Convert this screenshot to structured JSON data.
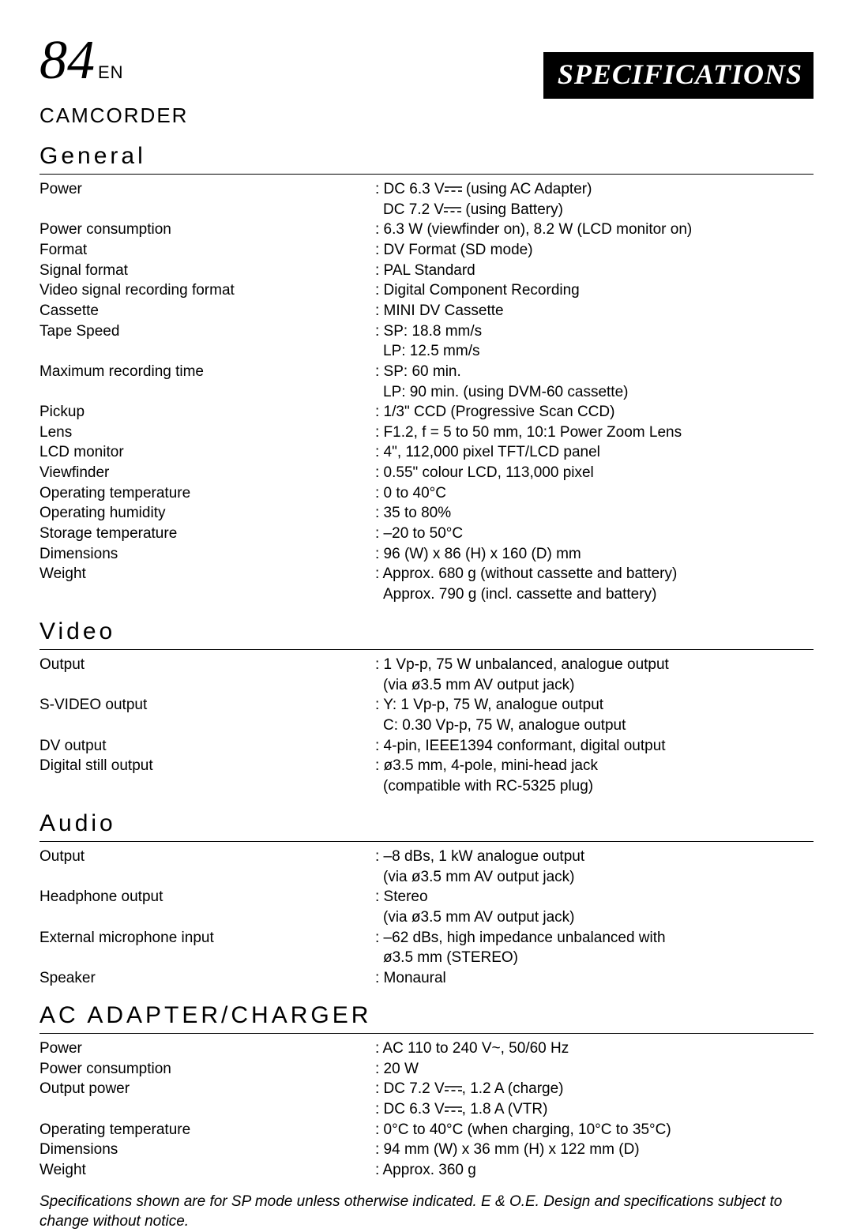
{
  "header": {
    "page_number": "84",
    "page_lang": "EN",
    "badge": "SPECIFICATIONS"
  },
  "sections": {
    "camcorder_label": "CAMCORDER",
    "general": {
      "title": "General",
      "rows": [
        {
          "label": "Power",
          "value": ": DC 6.3 V⎓ (using AC Adapter)"
        },
        {
          "label": "",
          "value": "  DC 7.2 V⎓ (using Battery)"
        },
        {
          "label": "Power consumption",
          "value": ": 6.3 W (viewfinder on), 8.2 W (LCD monitor on)"
        },
        {
          "label": "Format",
          "value": ": DV Format (SD mode)"
        },
        {
          "label": "Signal format",
          "value": ": PAL Standard"
        },
        {
          "label": "Video signal recording format",
          "value": ": Digital Component Recording"
        },
        {
          "label": "Cassette",
          "value": ": MINI DV Cassette"
        },
        {
          "label": "Tape Speed",
          "value": ": SP: 18.8 mm/s"
        },
        {
          "label": "",
          "value": "  LP: 12.5 mm/s"
        },
        {
          "label": "Maximum recording time",
          "value": ": SP: 60 min."
        },
        {
          "label": "",
          "value": "  LP: 90 min. (using DVM-60 cassette)"
        },
        {
          "label": "Pickup",
          "value": ": 1/3\" CCD (Progressive Scan CCD)"
        },
        {
          "label": "Lens",
          "value": ": F1.2, f = 5 to 50 mm, 10:1 Power Zoom Lens"
        },
        {
          "label": "LCD monitor",
          "value": ": 4\", 112,000 pixel TFT/LCD panel"
        },
        {
          "label": "Viewfinder",
          "value": ": 0.55\" colour LCD, 113,000 pixel"
        },
        {
          "label": "Operating temperature",
          "value": ": 0 to 40°C"
        },
        {
          "label": "Operating humidity",
          "value": ": 35 to 80%"
        },
        {
          "label": "Storage temperature",
          "value": ": –20 to 50°C"
        },
        {
          "label": "Dimensions",
          "value": ": 96 (W) x 86 (H) x 160 (D) mm"
        },
        {
          "label": "Weight",
          "value": ": Approx. 680 g (without cassette and battery)"
        },
        {
          "label": "",
          "value": "  Approx. 790 g (incl. cassette and battery)"
        }
      ]
    },
    "video": {
      "title": "Video",
      "rows": [
        {
          "label": "Output",
          "value": ": 1 Vp-p, 75 W unbalanced, analogue output"
        },
        {
          "label": "",
          "value": "  (via ø3.5 mm AV output jack)"
        },
        {
          "label": "S-VIDEO output",
          "value": ": Y: 1 Vp-p, 75 W, analogue output"
        },
        {
          "label": "",
          "value": "  C: 0.30 Vp-p, 75 W, analogue output"
        },
        {
          "label": "DV output",
          "value": ": 4-pin, IEEE1394 conformant, digital output"
        },
        {
          "label": "Digital still output",
          "value": ": ø3.5 mm, 4-pole, mini-head jack"
        },
        {
          "label": "",
          "value": "  (compatible with RC-5325 plug)"
        }
      ]
    },
    "audio": {
      "title": "Audio",
      "rows": [
        {
          "label": "Output",
          "value": ": –8 dBs, 1 kW analogue output"
        },
        {
          "label": "",
          "value": "  (via ø3.5 mm AV output jack)"
        },
        {
          "label": "Headphone output",
          "value": ": Stereo"
        },
        {
          "label": "",
          "value": "  (via ø3.5 mm AV output jack)"
        },
        {
          "label": "External microphone input",
          "value": ": –62 dBs, high impedance unbalanced with"
        },
        {
          "label": "",
          "value": "  ø3.5 mm (STEREO)"
        },
        {
          "label": "Speaker",
          "value": ": Monaural"
        }
      ]
    },
    "adapter": {
      "title": "AC ADAPTER/CHARGER",
      "rows": [
        {
          "label": "Power",
          "value": ": AC 110 to 240 V~, 50/60 Hz"
        },
        {
          "label": "Power consumption",
          "value": ": 20 W"
        },
        {
          "label": "Output power",
          "value": ": DC 7.2 V⎓, 1.2 A (charge)"
        },
        {
          "label": "",
          "value": ": DC 6.3 V⎓, 1.8 A (VTR)"
        },
        {
          "label": "Operating temperature",
          "value": ": 0°C to 40°C (when charging, 10°C to 35°C)"
        },
        {
          "label": "Dimensions",
          "value": ": 94 mm (W) x 36 mm (H) x 122 mm (D)"
        },
        {
          "label": "Weight",
          "value": ": Approx. 360 g"
        }
      ]
    }
  },
  "footnote": "Specifications shown are for SP mode unless otherwise indicated. E & O.E. Design and specifications subject to change without notice.",
  "colors": {
    "text": "#000000",
    "background": "#ffffff",
    "badge_bg": "#000000",
    "badge_fg": "#ffffff"
  },
  "dc_symbol_svg": "<svg width='22' height='10' viewBox='0 0 22 10'><line x1='0' y1='2' x2='22' y2='2' stroke='black' stroke-width='1.6'/><line x1='0' y1='7' x2='5' y2='7' stroke='black' stroke-width='1.6'/><line x1='8.5' y1='7' x2='13.5' y2='7' stroke='black' stroke-width='1.6'/><line x1='17' y1='7' x2='22' y2='7' stroke='black' stroke-width='1.6'/></svg>"
}
